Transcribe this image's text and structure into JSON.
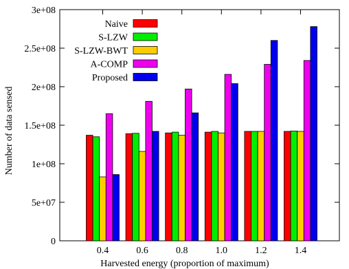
{
  "chart_data": {
    "type": "bar",
    "title": "",
    "xlabel": "Harvested energy (proportion of maximum)",
    "ylabel": "Number of data sensed",
    "categories": [
      "0.4",
      "0.6",
      "0.8",
      "1.0",
      "1.2",
      "1.4"
    ],
    "ylim": [
      0,
      300000000
    ],
    "yticks": [
      0,
      50000000,
      100000000,
      150000000,
      200000000,
      250000000,
      300000000
    ],
    "ytick_labels": [
      "0",
      "5e+07",
      "1e+08",
      "1.5e+08",
      "2e+08",
      "2.5e+08",
      "3e+08"
    ],
    "legend_position": "top-left",
    "grid": false,
    "series": [
      {
        "name": "Naive",
        "color": "#ff0000",
        "values": [
          137000000,
          139000000,
          140000000,
          141000000,
          142000000,
          142000000
        ]
      },
      {
        "name": "S-LZW",
        "color": "#00ee00",
        "values": [
          135000000,
          139500000,
          141000000,
          142000000,
          142000000,
          142500000
        ]
      },
      {
        "name": "S-LZW-BWT",
        "color": "#ffcc00",
        "values": [
          83000000,
          116000000,
          137000000,
          140000000,
          142000000,
          142000000
        ]
      },
      {
        "name": "A-COMP",
        "color": "#ee00ee",
        "values": [
          165000000,
          181000000,
          197000000,
          216000000,
          229000000,
          234000000
        ]
      },
      {
        "name": "Proposed",
        "color": "#0000ee",
        "values": [
          86000000,
          142000000,
          166000000,
          204000000,
          260000000,
          278000000
        ]
      }
    ]
  }
}
